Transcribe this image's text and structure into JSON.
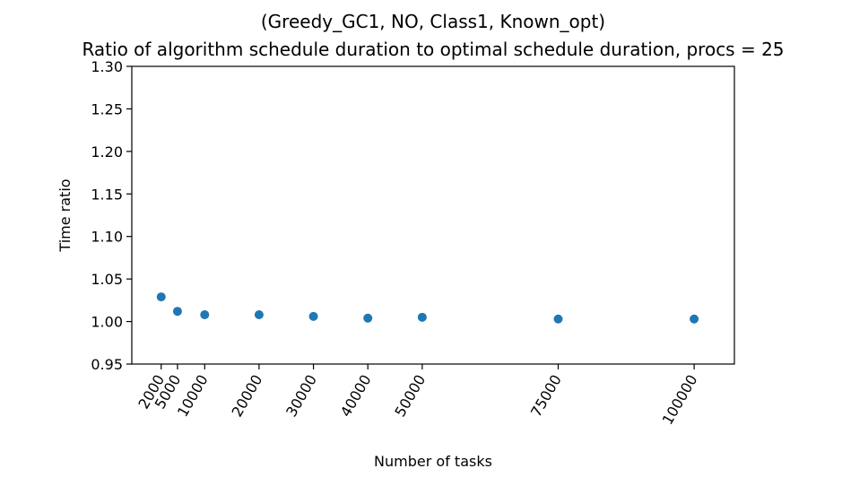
{
  "chart_data": {
    "type": "scatter",
    "title_line1": "(Greedy_GC1, NO, Class1, Known_opt)",
    "title_line2": "Ratio of algorithm schedule duration to optimal schedule duration, procs = 25",
    "xlabel": "Number of tasks",
    "ylabel": "Time ratio",
    "x": [
      2000,
      5000,
      10000,
      20000,
      30000,
      40000,
      50000,
      75000,
      100000
    ],
    "y": [
      1.029,
      1.012,
      1.008,
      1.008,
      1.006,
      1.004,
      1.005,
      1.003,
      1.003
    ],
    "xticks": [
      2000,
      5000,
      10000,
      20000,
      30000,
      40000,
      50000,
      75000,
      100000
    ],
    "xtick_labels": [
      "2000",
      "5000",
      "10000",
      "20000",
      "30000",
      "40000",
      "50000",
      "75000",
      "100000"
    ],
    "yticks": [
      0.95,
      1.0,
      1.05,
      1.1,
      1.15,
      1.2,
      1.25,
      1.3
    ],
    "ytick_labels": [
      "0.95",
      "1.00",
      "1.05",
      "1.10",
      "1.15",
      "1.20",
      "1.25",
      "1.30"
    ],
    "xlim": [
      -3400,
      107400
    ],
    "ylim": [
      0.95,
      1.3
    ],
    "grid": false,
    "marker_color": "#1f77b4"
  }
}
